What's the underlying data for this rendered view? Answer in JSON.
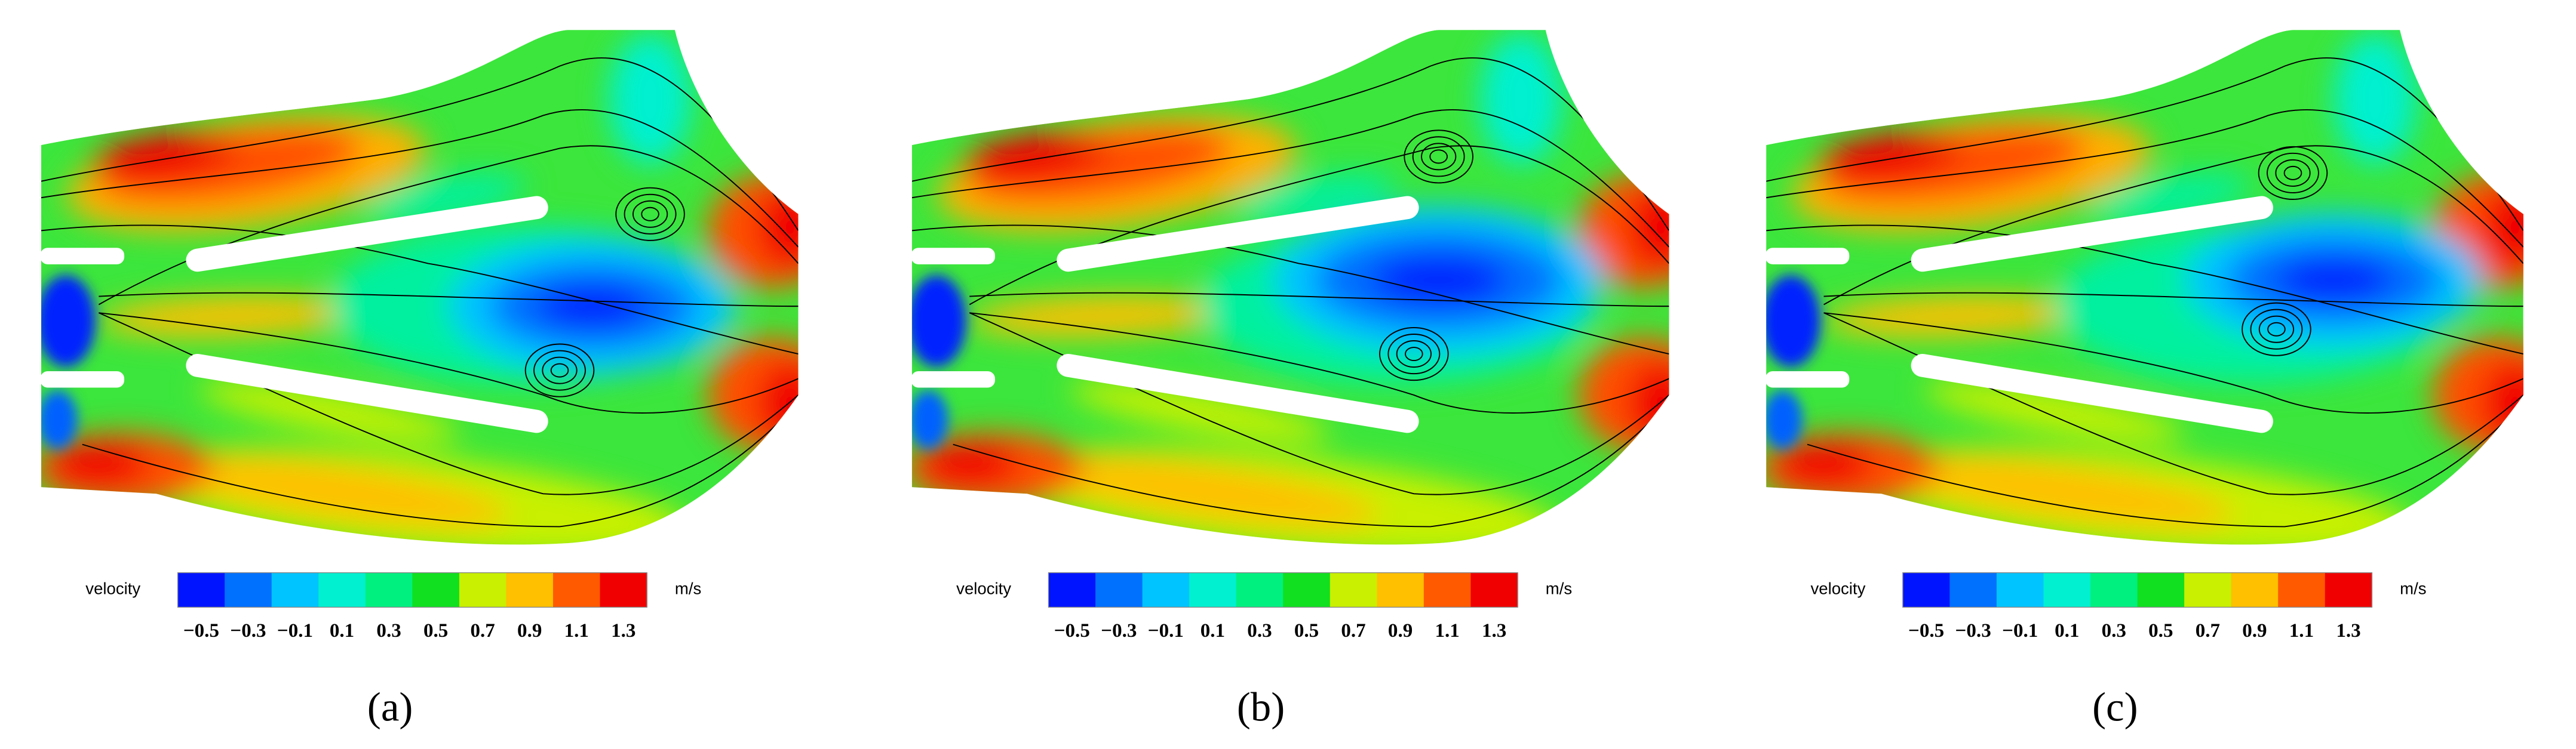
{
  "panels": [
    {
      "caption": "(a)",
      "colorbar": {
        "label": "velocity",
        "unit": "m/s",
        "ticks": [
          "−0.5",
          "−0.3",
          "−0.1",
          "0.1",
          "0.3",
          "0.5",
          "0.7",
          "0.9",
          "1.1",
          "1.3"
        ],
        "colors": [
          "#0014ff",
          "#0070ff",
          "#00c4ff",
          "#00f0d0",
          "#00f080",
          "#10e020",
          "#50ee00",
          "#c8f000",
          "#ffc000",
          "#ff5a00",
          "#f00000"
        ]
      }
    },
    {
      "caption": "(b)",
      "colorbar": {
        "label": "velocity",
        "unit": "m/s",
        "ticks": [
          "−0.5",
          "−0.3",
          "−0.1",
          "0.1",
          "0.3",
          "0.5",
          "0.7",
          "0.9",
          "1.1",
          "1.3"
        ],
        "colors": [
          "#0014ff",
          "#0070ff",
          "#00c4ff",
          "#00f0d0",
          "#00f080",
          "#10e020",
          "#50ee00",
          "#c8f000",
          "#ffc000",
          "#ff5a00",
          "#f00000"
        ]
      }
    },
    {
      "caption": "(c)",
      "colorbar": {
        "label": "velocity",
        "unit": "m/s",
        "ticks": [
          "−0.5",
          "−0.3",
          "−0.1",
          "0.1",
          "0.3",
          "0.5",
          "0.7",
          "0.9",
          "1.1",
          "1.3"
        ],
        "colors": [
          "#0014ff",
          "#0070ff",
          "#00c4ff",
          "#00f0d0",
          "#00f080",
          "#10e020",
          "#50ee00",
          "#c8f000",
          "#ffc000",
          "#ff5a00",
          "#f00000"
        ]
      }
    }
  ]
}
